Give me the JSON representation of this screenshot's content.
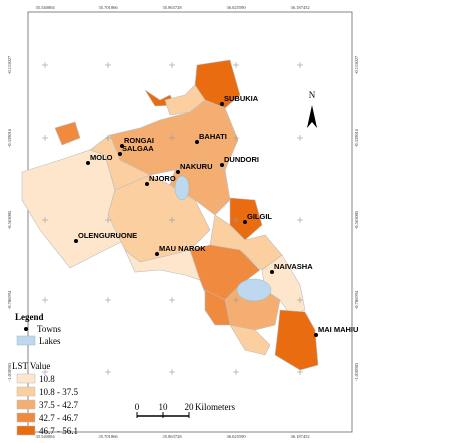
{
  "coordinates": {
    "top": [
      "35.540004",
      "35.701866",
      "35.863728",
      "36.025590",
      "36.187452"
    ],
    "left": [
      "-0.115027",
      "-0.339016",
      "-0.563005",
      "-0.786994",
      "-1.010983"
    ]
  },
  "towns": [
    {
      "label": "SUBUKIA"
    },
    {
      "label": "BAHATI"
    },
    {
      "label": "RONGAI"
    },
    {
      "label": "SALGAA"
    },
    {
      "label": "MOLO"
    },
    {
      "label": "DUNDORI"
    },
    {
      "label": "NAKURU"
    },
    {
      "label": "NJORO"
    },
    {
      "label": "GILGIL"
    },
    {
      "label": "OLENGURUONE"
    },
    {
      "label": "MAU NAROK"
    },
    {
      "label": "NAIVASHA"
    },
    {
      "label": "MAI MAHIU"
    }
  ],
  "north": "N",
  "legend": {
    "title": "Legend",
    "towns": "Towns",
    "lakes": "Lakes",
    "lakes_color": "#bed8f0",
    "lst_title": "LST Value",
    "classes": [
      {
        "label": "10.8",
        "color": "#fde6cc"
      },
      {
        "label": "10.8 - 37.5",
        "color": "#fbcf9f"
      },
      {
        "label": "37.5 - 42.7",
        "color": "#f5ae72"
      },
      {
        "label": "42.7 - 46.7",
        "color": "#f08a3e"
      },
      {
        "label": "46.7 - 56.1",
        "color": "#e96c10"
      }
    ]
  },
  "scale_bar": {
    "ticks": [
      0,
      10,
      20
    ],
    "unit": "Kilometers"
  }
}
